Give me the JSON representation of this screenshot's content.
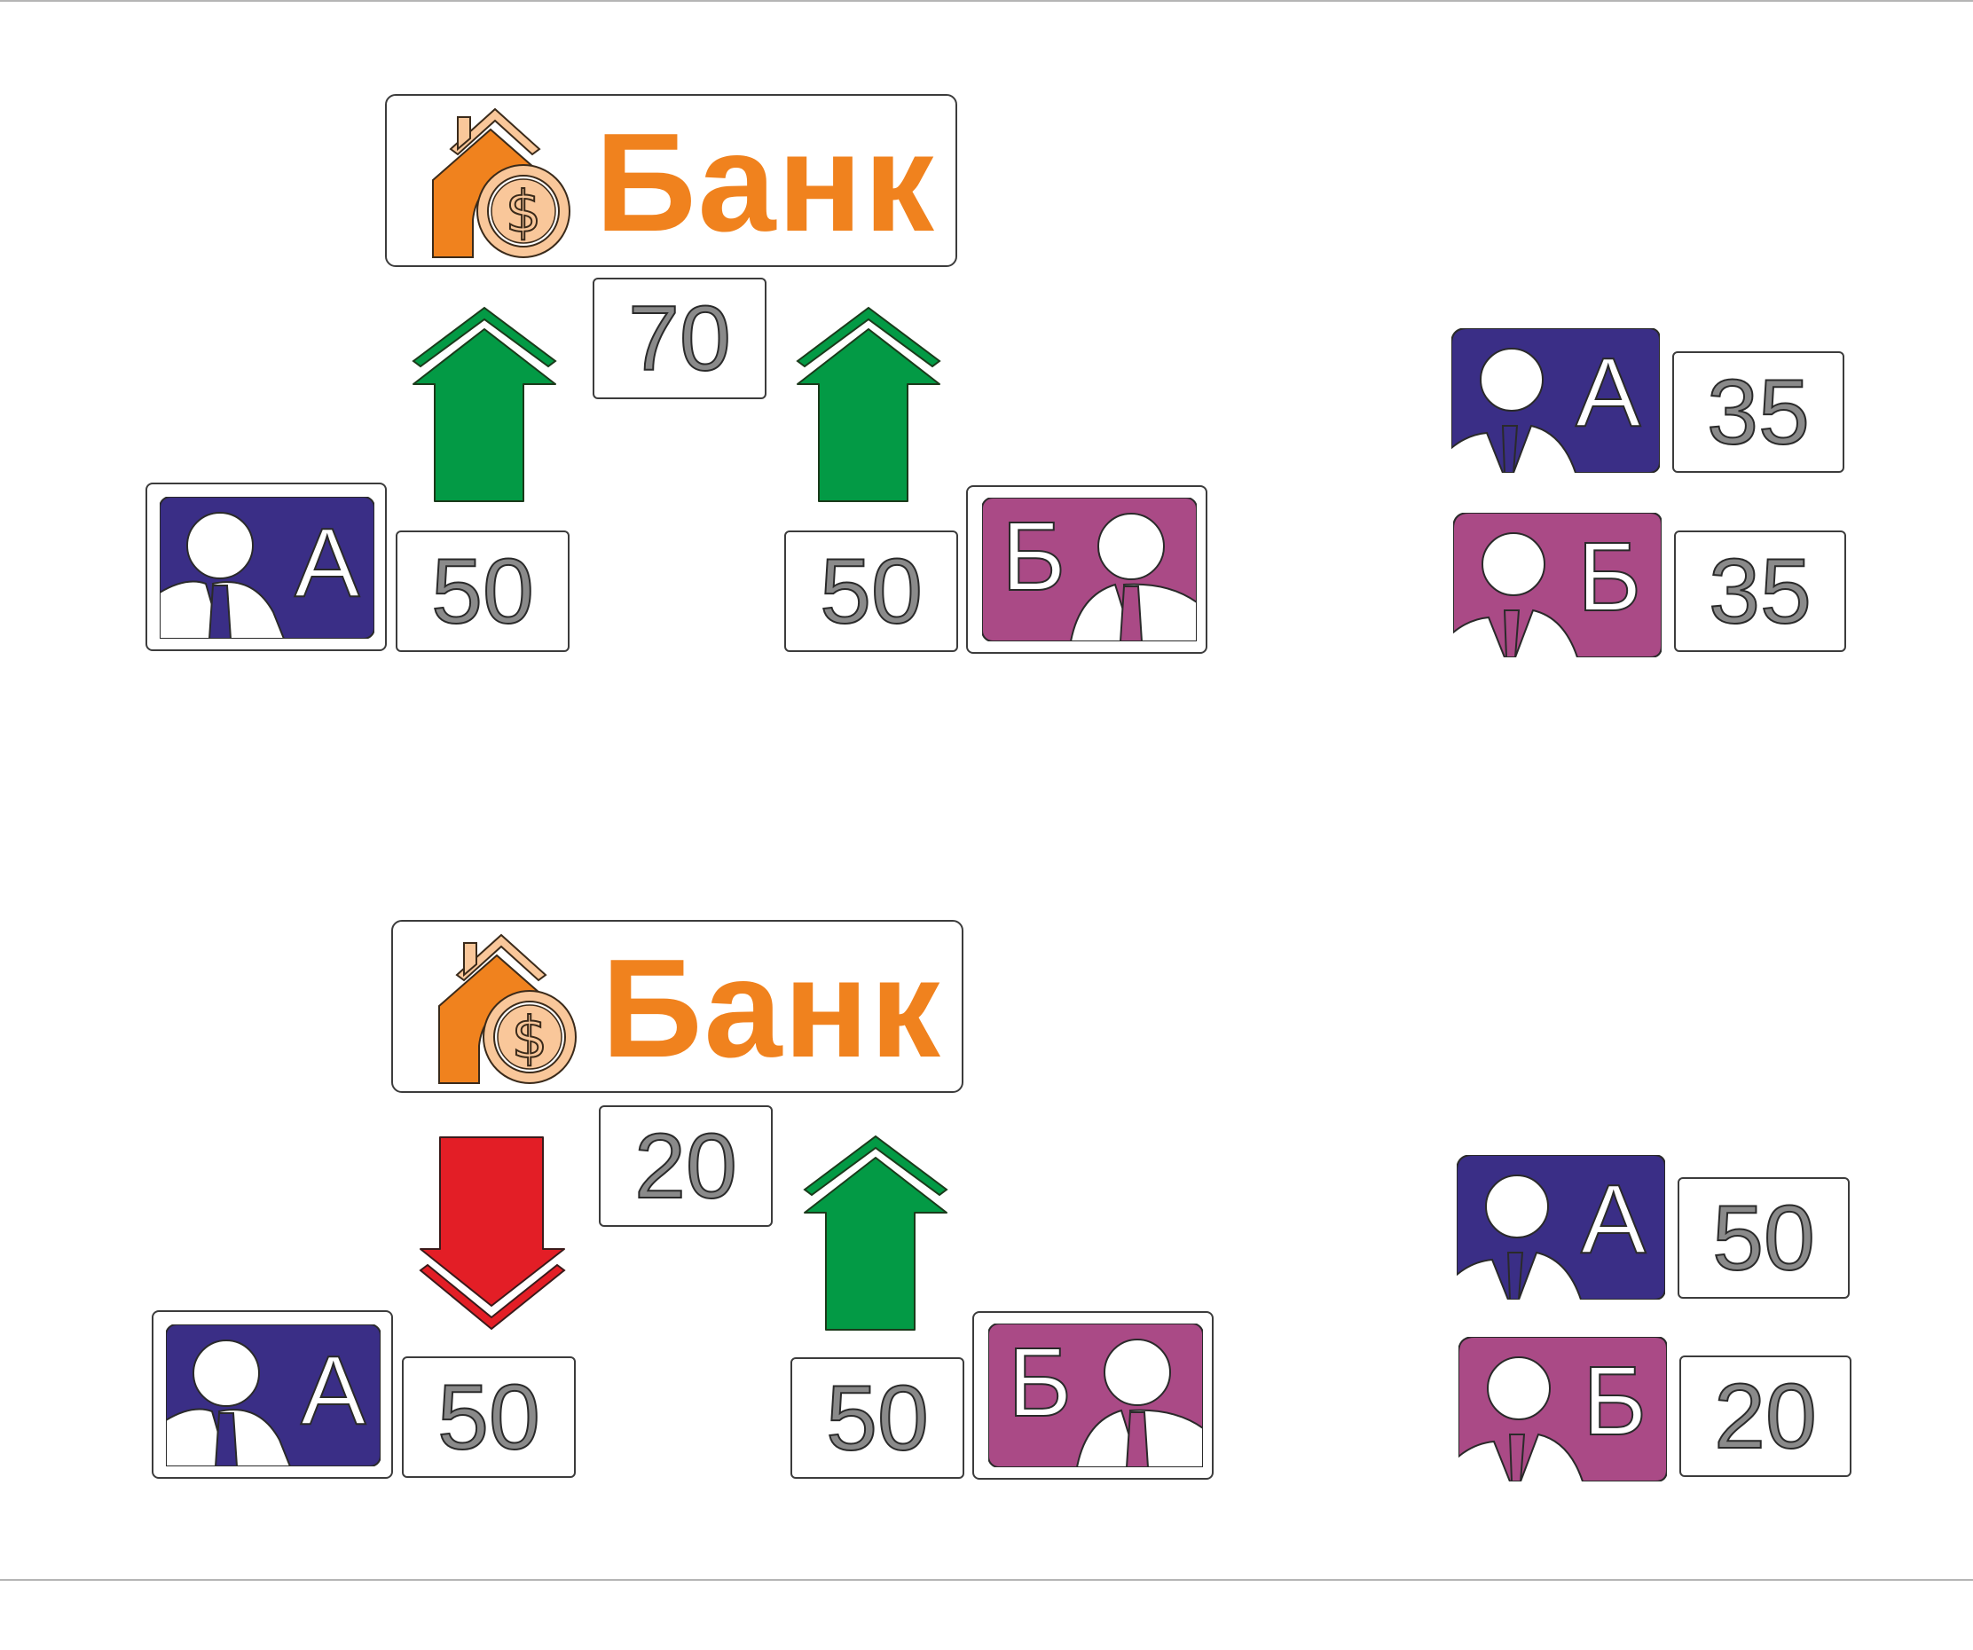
{
  "colors": {
    "bank_orange": "#f0821e",
    "bank_light": "#f9c79a",
    "client_a": "#3a2e86",
    "client_b": "#aa4a86",
    "arrow_green": "#039a45",
    "arrow_red": "#e31e26",
    "number_gray": "#8a8a8a"
  },
  "scenarios": [
    {
      "bank": {
        "name": "Банк",
        "icon": "house-dollar-icon",
        "amount": "70"
      },
      "left_arrow": "up-arrow-icon",
      "right_arrow": "up-arrow-icon",
      "client_a": {
        "letter": "А",
        "amount": "50"
      },
      "client_b": {
        "letter": "Б",
        "amount": "50"
      },
      "result": {
        "a": {
          "letter": "А",
          "amount": "35"
        },
        "b": {
          "letter": "Б",
          "amount": "35"
        }
      }
    },
    {
      "bank": {
        "name": "Банк",
        "icon": "house-dollar-icon",
        "amount": "20"
      },
      "left_arrow": "down-arrow-icon",
      "right_arrow": "up-arrow-icon",
      "client_a": {
        "letter": "А",
        "amount": "50"
      },
      "client_b": {
        "letter": "Б",
        "amount": "50"
      },
      "result": {
        "a": {
          "letter": "А",
          "amount": "50"
        },
        "b": {
          "letter": "Б",
          "amount": "20"
        }
      }
    }
  ]
}
